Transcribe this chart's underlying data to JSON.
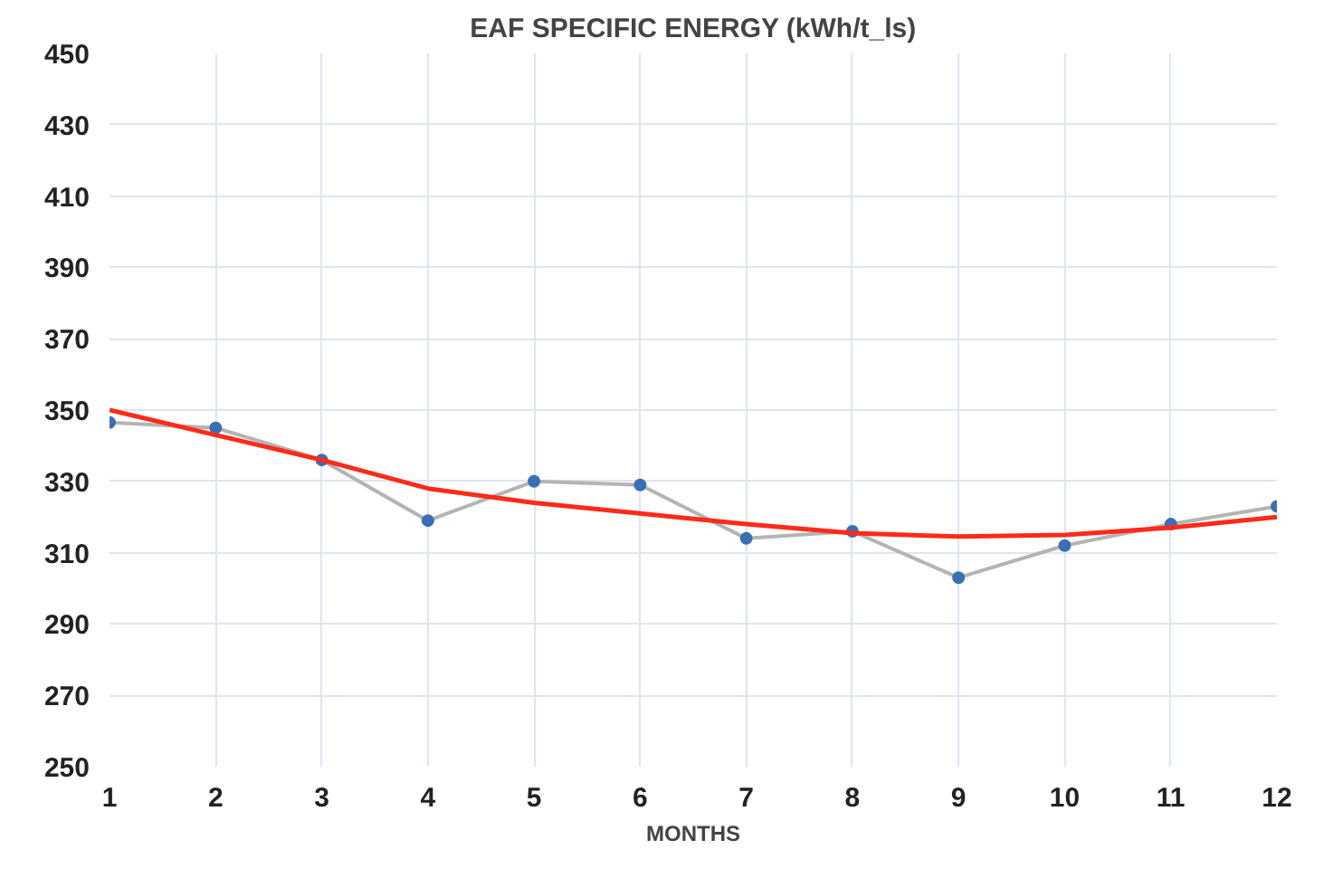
{
  "chart_data": {
    "type": "line",
    "title": "EAF SPECIFIC ENERGY (kWh/t_ls)",
    "xlabel": "MONTHS",
    "x": [
      1,
      2,
      3,
      4,
      5,
      6,
      7,
      8,
      9,
      10,
      11,
      12
    ],
    "series": [
      {
        "color": "#b4b4b4",
        "marker": "circle",
        "values": [
          346.5,
          345,
          336,
          319,
          330,
          329,
          314,
          316,
          303,
          312,
          318,
          323
        ]
      },
      {
        "color": "#ff2a1a",
        "marker": "none",
        "values": [
          350,
          343,
          336,
          328,
          324,
          321,
          318,
          315.5,
          314.5,
          315,
          317,
          320
        ]
      }
    ],
    "xlim": [
      1,
      12
    ],
    "xticks": [
      1,
      2,
      3,
      4,
      5,
      6,
      7,
      8,
      9,
      10,
      11,
      12
    ],
    "ylim": [
      250,
      450
    ],
    "yticks": [
      250,
      270,
      290,
      310,
      330,
      350,
      370,
      390,
      410,
      430,
      450
    ],
    "grid": true
  }
}
